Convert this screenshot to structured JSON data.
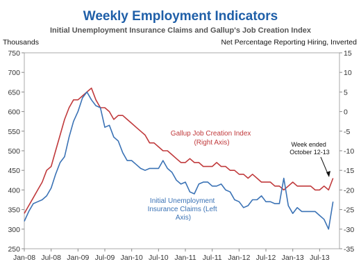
{
  "chart_data": {
    "type": "line",
    "title": "Weekly Employment Indicators",
    "subtitle": "Initial Unemployment Insurance Claims and Gallup's Job Creation Index",
    "left_axis": {
      "label": "Thousands",
      "ylim": [
        250,
        750
      ],
      "ticks": [
        250,
        300,
        350,
        400,
        450,
        500,
        550,
        600,
        650,
        700,
        750
      ]
    },
    "right_axis": {
      "label": "Net Percentage Reporting Hiring, Inverted",
      "ylim": [
        -35,
        15
      ],
      "inverted": true,
      "ticks": [
        15,
        10,
        5,
        0,
        -5,
        -10,
        -15,
        -20,
        -25,
        -30,
        -35
      ]
    },
    "x_axis": {
      "ticks": [
        "Jan-08",
        "Jul-08",
        "Jan-09",
        "Jul-09",
        "Jan-10",
        "Jul-10",
        "Jan-11",
        "Jul-11",
        "Jan-12",
        "Jul-12",
        "Jan-13",
        "Jul-13"
      ]
    },
    "series": [
      {
        "name": "Gallup Job Creation Index (Right Axis)",
        "axis": "right",
        "color": "#c0393b",
        "points": [
          [
            "2008-01",
            -26
          ],
          [
            "2008-02",
            -24
          ],
          [
            "2008-03",
            -22
          ],
          [
            "2008-04",
            -20
          ],
          [
            "2008-05",
            -18
          ],
          [
            "2008-06",
            -15
          ],
          [
            "2008-07",
            -14
          ],
          [
            "2008-08",
            -10
          ],
          [
            "2008-09",
            -6
          ],
          [
            "2008-10",
            -2
          ],
          [
            "2008-11",
            1
          ],
          [
            "2008-12",
            3
          ],
          [
            "2009-01",
            3
          ],
          [
            "2009-02",
            4
          ],
          [
            "2009-03",
            5
          ],
          [
            "2009-04",
            6
          ],
          [
            "2009-05",
            3
          ],
          [
            "2009-06",
            1
          ],
          [
            "2009-07",
            1
          ],
          [
            "2009-08",
            0
          ],
          [
            "2009-09",
            -2
          ],
          [
            "2009-10",
            -1
          ],
          [
            "2009-11",
            -1
          ],
          [
            "2009-12",
            -2
          ],
          [
            "2010-01",
            -3
          ],
          [
            "2010-02",
            -4
          ],
          [
            "2010-03",
            -5
          ],
          [
            "2010-04",
            -6
          ],
          [
            "2010-05",
            -8
          ],
          [
            "2010-06",
            -8
          ],
          [
            "2010-07",
            -9
          ],
          [
            "2010-08",
            -10
          ],
          [
            "2010-09",
            -10
          ],
          [
            "2010-10",
            -11
          ],
          [
            "2010-11",
            -12
          ],
          [
            "2010-12",
            -13
          ],
          [
            "2011-01",
            -13
          ],
          [
            "2011-02",
            -12
          ],
          [
            "2011-03",
            -13
          ],
          [
            "2011-04",
            -13
          ],
          [
            "2011-05",
            -14
          ],
          [
            "2011-06",
            -14
          ],
          [
            "2011-07",
            -14
          ],
          [
            "2011-08",
            -13
          ],
          [
            "2011-09",
            -14
          ],
          [
            "2011-10",
            -14
          ],
          [
            "2011-11",
            -15
          ],
          [
            "2011-12",
            -15
          ],
          [
            "2012-01",
            -16
          ],
          [
            "2012-02",
            -16
          ],
          [
            "2012-03",
            -17
          ],
          [
            "2012-04",
            -16
          ],
          [
            "2012-05",
            -17
          ],
          [
            "2012-06",
            -18
          ],
          [
            "2012-07",
            -18
          ],
          [
            "2012-08",
            -18
          ],
          [
            "2012-09",
            -19
          ],
          [
            "2012-10",
            -19
          ],
          [
            "2012-11",
            -20
          ],
          [
            "2012-12",
            -19
          ],
          [
            "2013-01",
            -18
          ],
          [
            "2013-02",
            -19
          ],
          [
            "2013-03",
            -19
          ],
          [
            "2013-04",
            -19
          ],
          [
            "2013-05",
            -19
          ],
          [
            "2013-06",
            -20
          ],
          [
            "2013-07",
            -20
          ],
          [
            "2013-08",
            -19
          ],
          [
            "2013-09",
            -20
          ],
          [
            "2013-10",
            -17
          ]
        ]
      },
      {
        "name": "Initial Unemployment Insurance Claims (Left Axis)",
        "axis": "left",
        "color": "#3a72b5",
        "points": [
          [
            "2008-01",
            320
          ],
          [
            "2008-02",
            345
          ],
          [
            "2008-03",
            365
          ],
          [
            "2008-04",
            370
          ],
          [
            "2008-05",
            375
          ],
          [
            "2008-06",
            385
          ],
          [
            "2008-07",
            405
          ],
          [
            "2008-08",
            440
          ],
          [
            "2008-09",
            470
          ],
          [
            "2008-10",
            485
          ],
          [
            "2008-11",
            535
          ],
          [
            "2008-12",
            575
          ],
          [
            "2009-01",
            600
          ],
          [
            "2009-02",
            635
          ],
          [
            "2009-03",
            650
          ],
          [
            "2009-04",
            630
          ],
          [
            "2009-05",
            615
          ],
          [
            "2009-06",
            610
          ],
          [
            "2009-07",
            560
          ],
          [
            "2009-08",
            565
          ],
          [
            "2009-09",
            535
          ],
          [
            "2009-10",
            525
          ],
          [
            "2009-11",
            495
          ],
          [
            "2009-12",
            475
          ],
          [
            "2010-01",
            475
          ],
          [
            "2010-02",
            465
          ],
          [
            "2010-03",
            455
          ],
          [
            "2010-04",
            450
          ],
          [
            "2010-05",
            455
          ],
          [
            "2010-06",
            455
          ],
          [
            "2010-07",
            455
          ],
          [
            "2010-08",
            475
          ],
          [
            "2010-09",
            455
          ],
          [
            "2010-10",
            445
          ],
          [
            "2010-11",
            425
          ],
          [
            "2010-12",
            415
          ],
          [
            "2011-01",
            420
          ],
          [
            "2011-02",
            395
          ],
          [
            "2011-03",
            390
          ],
          [
            "2011-04",
            415
          ],
          [
            "2011-05",
            420
          ],
          [
            "2011-06",
            420
          ],
          [
            "2011-07",
            410
          ],
          [
            "2011-08",
            410
          ],
          [
            "2011-09",
            415
          ],
          [
            "2011-10",
            400
          ],
          [
            "2011-11",
            395
          ],
          [
            "2011-12",
            375
          ],
          [
            "2012-01",
            370
          ],
          [
            "2012-02",
            355
          ],
          [
            "2012-03",
            360
          ],
          [
            "2012-04",
            375
          ],
          [
            "2012-05",
            375
          ],
          [
            "2012-06",
            385
          ],
          [
            "2012-07",
            370
          ],
          [
            "2012-08",
            370
          ],
          [
            "2012-09",
            365
          ],
          [
            "2012-10",
            365
          ],
          [
            "2012-11",
            430
          ],
          [
            "2012-12",
            360
          ],
          [
            "2013-01",
            340
          ],
          [
            "2013-02",
            355
          ],
          [
            "2013-03",
            345
          ],
          [
            "2013-04",
            345
          ],
          [
            "2013-05",
            345
          ],
          [
            "2013-06",
            345
          ],
          [
            "2013-07",
            335
          ],
          [
            "2013-08",
            325
          ],
          [
            "2013-09",
            300
          ],
          [
            "2013-10",
            370
          ]
        ]
      }
    ],
    "annotations": {
      "gallup": [
        "Gallup  Job Creation Index",
        "(Right Axis)"
      ],
      "claims": [
        "Initial  Unemployment",
        "Insurance  Claims (Left",
        "Axis)"
      ],
      "week": [
        "Week ended",
        "October 12-13"
      ]
    },
    "grid": false,
    "legend": "none"
  }
}
